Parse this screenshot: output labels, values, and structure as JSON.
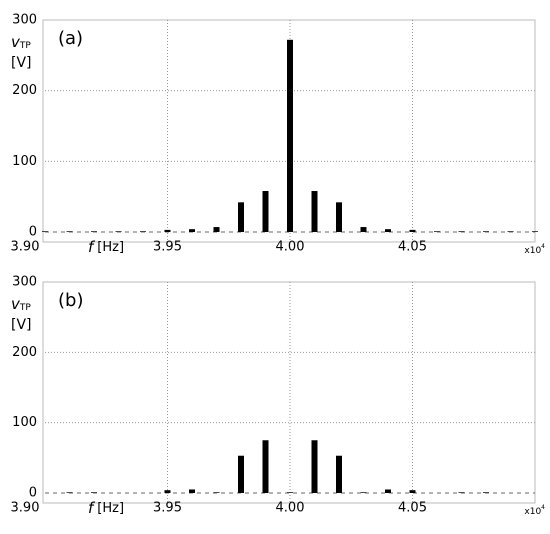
{
  "chart_data": [
    {
      "type": "bar",
      "panel_label": "(a)",
      "ylabel_var": "v",
      "ylabel_sub": "TP",
      "ylabel_unit": "[V]",
      "xlabel_var": "f",
      "xlabel_unit": "[Hz]",
      "x_multiplier": "x10",
      "x_multiplier_exp": "4",
      "x": [
        3.9,
        3.91,
        3.92,
        3.93,
        3.94,
        3.95,
        3.96,
        3.97,
        3.98,
        3.99,
        4.0,
        4.01,
        4.02,
        4.03,
        4.04,
        4.05,
        4.06,
        4.07,
        4.08,
        4.09,
        4.1
      ],
      "values": [
        1,
        1,
        1,
        1,
        1,
        3,
        4,
        7,
        42,
        58,
        272,
        58,
        42,
        7,
        4,
        3,
        1,
        1,
        1,
        1,
        1
      ],
      "color": "#000000",
      "xlim": [
        3.9,
        4.1
      ],
      "ylim": [
        0,
        300
      ],
      "xticks": [
        {
          "value": 3.9,
          "label": "3.90"
        },
        3.95,
        {
          "value": 4.0,
          "label": "4.00"
        },
        4.05
      ],
      "yticks": [
        0,
        100,
        200,
        300
      ],
      "grid": true
    },
    {
      "type": "bar",
      "panel_label": "(b)",
      "ylabel_var": "v",
      "ylabel_sub": "TP",
      "ylabel_unit": "[V]",
      "xlabel_var": "f",
      "xlabel_unit": "[Hz]",
      "x_multiplier": "x10",
      "x_multiplier_exp": "4",
      "x": [
        3.9,
        3.91,
        3.92,
        3.93,
        3.94,
        3.95,
        3.96,
        3.97,
        3.98,
        3.99,
        4.0,
        4.01,
        4.02,
        4.03,
        4.04,
        4.05,
        4.06,
        4.07,
        4.08,
        4.09,
        4.1
      ],
      "values": [
        0,
        1,
        1,
        0,
        0,
        4,
        5,
        1,
        53,
        75,
        1,
        75,
        53,
        1,
        5,
        4,
        0,
        1,
        1,
        0,
        0
      ],
      "color": "#000000",
      "xlim": [
        3.9,
        4.1
      ],
      "ylim": [
        0,
        300
      ],
      "xticks": [
        {
          "value": 3.9,
          "label": "3.90"
        },
        3.95,
        {
          "value": 4.0,
          "label": "4.00"
        },
        4.05
      ],
      "yticks": [
        0,
        100,
        200,
        300
      ],
      "grid": true
    }
  ]
}
